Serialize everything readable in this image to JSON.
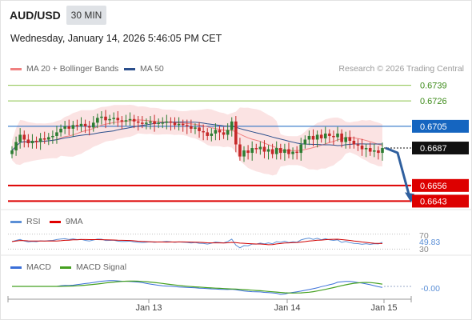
{
  "header": {
    "symbol": "AUD/USD",
    "timeframe": "30 MIN",
    "datetime": "Wednesday, January 14, 2026 5:46:05 PM CET",
    "credit": "Research © 2026 Trading Central"
  },
  "legend": {
    "ma20_bb": "MA 20 + Bollinger Bands",
    "ma50": "MA 50",
    "rsi": "RSI",
    "rsi_ma": "9MA",
    "macd": "MACD",
    "macd_signal": "MACD Signal"
  },
  "colors": {
    "resistance": "#8bc34a",
    "support": "#dd0000",
    "current_price": "#111111",
    "pivot": "#1565c0",
    "bullish": "#2e7d32",
    "bearish": "#c62828",
    "ma20": "#f08080",
    "ma50": "#2b4f8c",
    "bollinger_fill": "#fbe0e0",
    "rsi": "#5b8fd6",
    "macd": "#3a6fd8",
    "macd_signal": "#45a020"
  },
  "chart_data": [
    {
      "type": "candlestick",
      "title": "AUD/USD",
      "x_ticks": [
        "Jan 13",
        "Jan 14",
        "Jan 15"
      ],
      "ylim": [
        0.6636,
        0.6746
      ],
      "levels": [
        {
          "label": "0.6739",
          "value": 0.6739,
          "kind": "resistance"
        },
        {
          "label": "0.6726",
          "value": 0.6726,
          "kind": "resistance"
        },
        {
          "label": "0.6705",
          "value": 0.6705,
          "kind": "pivot"
        },
        {
          "label": "0.6687",
          "value": 0.6687,
          "kind": "current_price"
        },
        {
          "label": "0.6656",
          "value": 0.6656,
          "kind": "support"
        },
        {
          "label": "0.6643",
          "value": 0.6643,
          "kind": "support"
        }
      ],
      "closes": [
        0.6685,
        0.6692,
        0.6698,
        0.6694,
        0.6691,
        0.6693,
        0.6692,
        0.6695,
        0.6694,
        0.6696,
        0.6697,
        0.67,
        0.6703,
        0.6705,
        0.6703,
        0.6706,
        0.6705,
        0.6707,
        0.6705,
        0.6704,
        0.6708,
        0.6712,
        0.6713,
        0.671,
        0.6711,
        0.6712,
        0.671,
        0.6709,
        0.671,
        0.6711,
        0.6709,
        0.6708,
        0.6707,
        0.6708,
        0.6709,
        0.6707,
        0.6708,
        0.6708,
        0.6709,
        0.6708,
        0.6706,
        0.6707,
        0.6706,
        0.6705,
        0.6703,
        0.6704,
        0.6701,
        0.67,
        0.6697,
        0.6699,
        0.6702,
        0.67,
        0.6698,
        0.6702,
        0.6709,
        0.669,
        0.668,
        0.6685,
        0.6683,
        0.6687,
        0.6686,
        0.6688,
        0.6684,
        0.6686,
        0.6682,
        0.6687,
        0.6683,
        0.6686,
        0.6682,
        0.6684,
        0.6683,
        0.669,
        0.6694,
        0.6697,
        0.6694,
        0.6698,
        0.6695,
        0.6699,
        0.6697,
        0.6696,
        0.6699,
        0.6692,
        0.6696,
        0.6693,
        0.669,
        0.6689,
        0.6686,
        0.6687,
        0.6684,
        0.6685,
        0.6683,
        0.6687
      ],
      "projection": {
        "from": 0.6687,
        "to": 0.6643
      }
    },
    {
      "type": "line",
      "title": "RSI",
      "y_ticks": [
        "70",
        "49.83",
        "30"
      ],
      "current_value": "49.83",
      "ylim": [
        20,
        80
      ]
    },
    {
      "type": "line",
      "title": "MACD",
      "y_ticks": [
        "-0.00"
      ],
      "current_value": "-0.00"
    }
  ]
}
